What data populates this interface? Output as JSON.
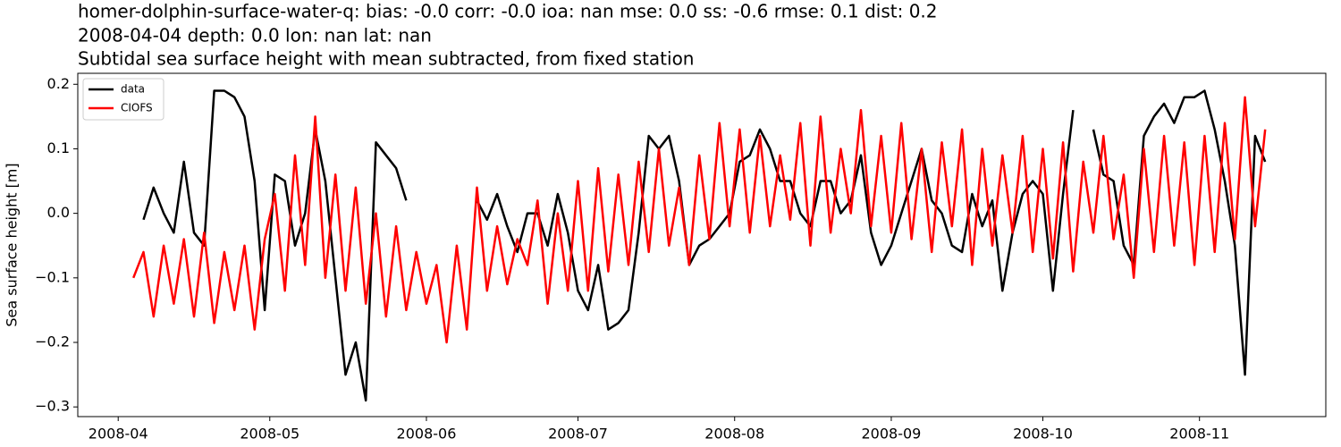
{
  "chart_data": {
    "type": "line",
    "title": [
      "homer-dolphin-surface-water-q: bias: -0.0  corr: -0.0  ioa: nan  mse: 0.0  ss: -0.6  rmse: 0.1  dist: 0.2",
      "2008-04-04 depth: 0.0 lon: nan lat: nan",
      "Subtidal sea surface height with mean subtracted, from fixed station"
    ],
    "ylabel": "Sea surface height [m]",
    "legend": "upper left",
    "xlim": [
      "2008-03-24",
      "2008-11-26"
    ],
    "ylim": [
      -0.315,
      0.217
    ],
    "xticks": [
      {
        "value": "2008-04-01",
        "label": "2008-04"
      },
      {
        "value": "2008-05-01",
        "label": "2008-05"
      },
      {
        "value": "2008-06-01",
        "label": "2008-06"
      },
      {
        "value": "2008-07-01",
        "label": "2008-07"
      },
      {
        "value": "2008-08-01",
        "label": "2008-08"
      },
      {
        "value": "2008-09-01",
        "label": "2008-09"
      },
      {
        "value": "2008-10-01",
        "label": "2008-10"
      },
      {
        "value": "2008-11-01",
        "label": "2008-11"
      }
    ],
    "yticks": [
      {
        "value": -0.3,
        "label": "−0.3"
      },
      {
        "value": -0.2,
        "label": "−0.2"
      },
      {
        "value": -0.1,
        "label": "−0.1"
      },
      {
        "value": 0,
        "label": "0.0"
      },
      0.1,
      0.2
    ],
    "x": [
      "2008-04-04",
      "2008-04-06",
      "2008-04-08",
      "2008-04-10",
      "2008-04-12",
      "2008-04-14",
      "2008-04-16",
      "2008-04-18",
      "2008-04-20",
      "2008-04-22",
      "2008-04-24",
      "2008-04-26",
      "2008-04-28",
      "2008-04-30",
      "2008-05-02",
      "2008-05-04",
      "2008-05-06",
      "2008-05-08",
      "2008-05-10",
      "2008-05-12",
      "2008-05-14",
      "2008-05-16",
      "2008-05-18",
      "2008-05-20",
      "2008-05-22",
      "2008-05-24",
      "2008-05-26",
      "2008-05-28",
      "2008-05-30",
      "2008-06-01",
      "2008-06-03",
      "2008-06-05",
      "2008-06-07",
      "2008-06-09",
      "2008-06-11",
      "2008-06-13",
      "2008-06-15",
      "2008-06-17",
      "2008-06-19",
      "2008-06-21",
      "2008-06-23",
      "2008-06-25",
      "2008-06-27",
      "2008-06-29",
      "2008-07-01",
      "2008-07-03",
      "2008-07-05",
      "2008-07-07",
      "2008-07-09",
      "2008-07-11",
      "2008-07-13",
      "2008-07-15",
      "2008-07-17",
      "2008-07-19",
      "2008-07-21",
      "2008-07-23",
      "2008-07-25",
      "2008-07-27",
      "2008-07-29",
      "2008-07-31",
      "2008-08-02",
      "2008-08-04",
      "2008-08-06",
      "2008-08-08",
      "2008-08-10",
      "2008-08-12",
      "2008-08-14",
      "2008-08-16",
      "2008-08-18",
      "2008-08-20",
      "2008-08-22",
      "2008-08-24",
      "2008-08-26",
      "2008-08-28",
      "2008-08-30",
      "2008-09-01",
      "2008-09-03",
      "2008-09-05",
      "2008-09-07",
      "2008-09-09",
      "2008-09-11",
      "2008-09-13",
      "2008-09-15",
      "2008-09-17",
      "2008-09-19",
      "2008-09-21",
      "2008-09-23",
      "2008-09-25",
      "2008-09-27",
      "2008-09-29",
      "2008-10-01",
      "2008-10-03",
      "2008-10-05",
      "2008-10-07",
      "2008-10-09",
      "2008-10-11",
      "2008-10-13",
      "2008-10-15",
      "2008-10-17",
      "2008-10-19",
      "2008-10-21",
      "2008-10-23",
      "2008-10-25",
      "2008-10-27",
      "2008-10-29",
      "2008-10-31",
      "2008-11-02",
      "2008-11-04",
      "2008-11-06",
      "2008-11-08",
      "2008-11-10",
      "2008-11-12",
      "2008-11-14"
    ],
    "series": [
      {
        "name": "data",
        "color": "#000000",
        "values": [
          null,
          -0.01,
          0.04,
          0.0,
          -0.03,
          0.08,
          -0.03,
          -0.05,
          0.19,
          0.19,
          0.18,
          0.15,
          0.05,
          -0.15,
          0.06,
          0.05,
          -0.05,
          0.0,
          0.13,
          0.05,
          -0.1,
          -0.25,
          -0.2,
          -0.29,
          0.11,
          0.09,
          0.07,
          0.02,
          null,
          null,
          null,
          null,
          null,
          null,
          0.02,
          -0.01,
          0.03,
          -0.02,
          -0.06,
          0.0,
          0.0,
          -0.05,
          0.03,
          -0.03,
          -0.12,
          -0.15,
          -0.08,
          -0.18,
          -0.17,
          -0.15,
          -0.03,
          0.12,
          0.1,
          0.12,
          0.05,
          -0.08,
          -0.05,
          -0.04,
          -0.02,
          0.0,
          0.08,
          0.09,
          0.13,
          0.1,
          0.05,
          0.05,
          0.0,
          -0.02,
          0.05,
          0.05,
          0.0,
          0.02,
          0.09,
          -0.03,
          -0.08,
          -0.05,
          0.0,
          0.05,
          0.1,
          0.02,
          0.0,
          -0.05,
          -0.06,
          0.03,
          -0.02,
          0.02,
          -0.12,
          -0.03,
          0.03,
          0.05,
          0.03,
          -0.12,
          0.03,
          0.16,
          null,
          0.13,
          0.06,
          0.05,
          -0.05,
          -0.08,
          0.12,
          0.15,
          0.17,
          0.14,
          0.18,
          0.18,
          0.19,
          0.13,
          0.05,
          -0.05,
          -0.25,
          0.12,
          0.08
        ]
      },
      {
        "name": "CIOFS",
        "color": "#ff0000",
        "values": [
          -0.1,
          -0.06,
          -0.16,
          -0.05,
          -0.14,
          -0.04,
          -0.16,
          -0.03,
          -0.17,
          -0.06,
          -0.15,
          -0.05,
          -0.18,
          -0.04,
          0.03,
          -0.12,
          0.09,
          -0.08,
          0.15,
          -0.1,
          0.06,
          -0.12,
          0.04,
          -0.14,
          0.0,
          -0.16,
          -0.02,
          -0.15,
          -0.06,
          -0.14,
          -0.08,
          -0.2,
          -0.05,
          -0.18,
          0.04,
          -0.12,
          -0.02,
          -0.11,
          -0.04,
          -0.08,
          0.02,
          -0.14,
          0.0,
          -0.12,
          0.05,
          -0.12,
          0.07,
          -0.09,
          0.06,
          -0.08,
          0.08,
          -0.06,
          0.1,
          -0.05,
          0.04,
          -0.08,
          0.09,
          -0.04,
          0.14,
          -0.02,
          0.13,
          -0.03,
          0.12,
          -0.02,
          0.09,
          -0.01,
          0.14,
          -0.05,
          0.15,
          -0.03,
          0.1,
          0.0,
          0.16,
          -0.02,
          0.12,
          -0.03,
          0.14,
          -0.04,
          0.1,
          -0.06,
          0.11,
          -0.02,
          0.13,
          -0.08,
          0.1,
          -0.05,
          0.09,
          -0.03,
          0.12,
          -0.06,
          0.1,
          -0.07,
          0.11,
          -0.09,
          0.08,
          -0.03,
          0.12,
          -0.04,
          0.06,
          -0.1,
          0.1,
          -0.06,
          0.12,
          -0.05,
          0.11,
          -0.08,
          0.12,
          -0.06,
          0.14,
          -0.04,
          0.18,
          -0.02,
          0.13
        ]
      }
    ]
  }
}
